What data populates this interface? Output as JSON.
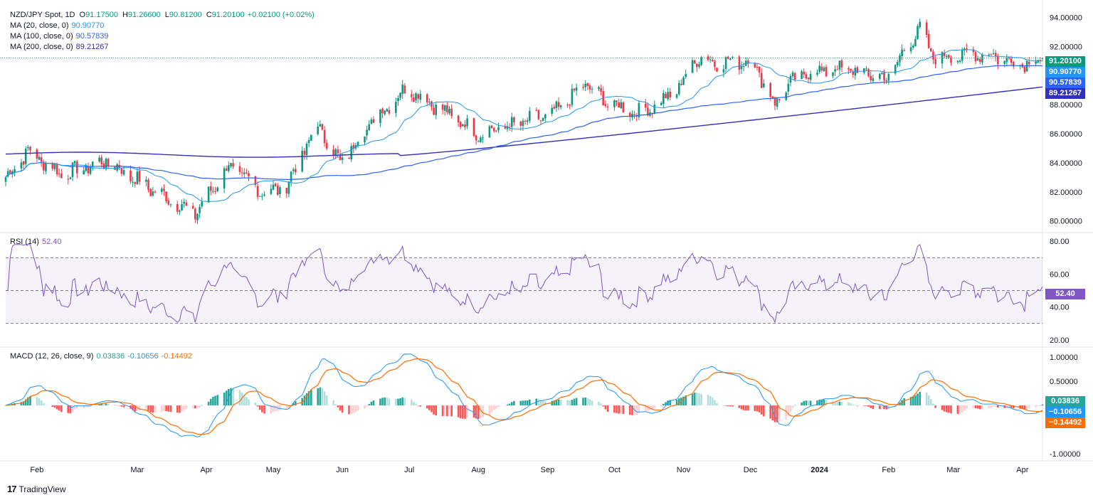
{
  "header": {
    "symbol": "NZD/JPY Spot, 1D",
    "open_label": "O",
    "open": "91.17500",
    "high_label": "H",
    "high": "91.26600",
    "low_label": "L",
    "low": "90.81200",
    "close_label": "C",
    "close": "91.20100",
    "change": "+0.02100 (+0.02%)"
  },
  "ma_legend": [
    {
      "label": "MA (20, close, 0)",
      "value": "90.90770",
      "color": "#2196F3"
    },
    {
      "label": "MA (100, close, 0)",
      "value": "90.57839",
      "color": "#2962FF"
    },
    {
      "label": "MA (200, close, 0)",
      "value": "89.21267",
      "color": "#3130B8"
    }
  ],
  "price_badges": [
    {
      "value": "91.20100",
      "color": "#089981"
    },
    {
      "value": "90.90770",
      "color": "#2196F3"
    },
    {
      "value": "90.57839",
      "color": "#2962FF"
    },
    {
      "value": "89.21267",
      "color": "#3130B8"
    }
  ],
  "rsi_legend": {
    "label": "RSI (14)",
    "value": "52.40",
    "color": "#7E57C2"
  },
  "rsi_badge": {
    "value": "52.40",
    "color": "#7E57C2"
  },
  "macd_legend": {
    "label": "MACD (12, 26, close, 9)",
    "hist": "0.03836",
    "macd": "-0.10656",
    "signal": "-0.14492"
  },
  "macd_badges": [
    {
      "value": "0.03836",
      "color": "#26A69A"
    },
    {
      "value": "−0.10656",
      "color": "#2196F3"
    },
    {
      "value": "−0.14492",
      "color": "#FF6D00"
    }
  ],
  "footer": {
    "logo": "17",
    "brand": "TradingView"
  },
  "colors": {
    "up": "#089981",
    "down": "#F23645",
    "ma20": "#2196F3",
    "ma100": "#2962FF",
    "ma200": "#3130B8",
    "rsi": "#7E57C2",
    "macd": "#2196F3",
    "signal": "#FF6D00",
    "hist_up_strong": "#26A69A",
    "hist_up_weak": "#B2DFDB",
    "hist_down_strong": "#FF5252",
    "hist_down_weak": "#FFCDD2"
  },
  "chart_data": {
    "type": "candlestick",
    "title": "NZD/JPY Spot, 1D",
    "x_ticks": [
      "Feb",
      "Mar",
      "Apr",
      "May",
      "Jun",
      "Jul",
      "Aug",
      "Sep",
      "Oct",
      "Nov",
      "Dec",
      "2024",
      "Feb",
      "Mar",
      "Apr"
    ],
    "x_tick_days": [
      14,
      59,
      90,
      120,
      151,
      181,
      212,
      243,
      273,
      304,
      334,
      365,
      396,
      425,
      456
    ],
    "total_days": 465,
    "price_axis": {
      "ticks": [
        "94.00000",
        "92.00000",
        "90.00000",
        "88.00000",
        "86.00000",
        "84.00000",
        "82.00000",
        "80.00000"
      ],
      "ylim": [
        79.3,
        94.8
      ]
    },
    "price_anchors": {
      "days": [
        0,
        10,
        25,
        45,
        55,
        65,
        85,
        100,
        115,
        125,
        140,
        150,
        165,
        180,
        195,
        212,
        225,
        245,
        260,
        270,
        285,
        300,
        310,
        320,
        335,
        345,
        350,
        360,
        375,
        395,
        410,
        415,
        420,
        440,
        455,
        465
      ],
      "close": [
        83.0,
        84.8,
        83.2,
        84.1,
        83.2,
        82.2,
        80.5,
        83.8,
        82.0,
        82.2,
        86.6,
        84.0,
        87.0,
        89.2,
        87.7,
        86.0,
        86.5,
        87.3,
        89.4,
        88.1,
        87.4,
        88.8,
        91.2,
        90.9,
        91.0,
        88.0,
        89.3,
        90.2,
        90.5,
        89.8,
        93.3,
        91.4,
        91.3,
        91.5,
        90.8,
        91.2
      ]
    },
    "ma20_last": 90.9077,
    "ma100_last": 90.57839,
    "ma200_last": 89.21267,
    "rsi": {
      "axis_ticks": [
        "80.00",
        "60.00",
        "40.00",
        "20.00"
      ],
      "ylim": [
        16,
        84
      ],
      "levels": [
        70,
        50,
        30
      ],
      "last": 52.4
    },
    "macd": {
      "axis_ticks": [
        "1.00000",
        "0.50000",
        "-1.00000"
      ],
      "ylim": [
        -1.15,
        1.18
      ],
      "hist_last": 0.03836,
      "macd_last": -0.10656,
      "signal_last": -0.14492
    }
  }
}
